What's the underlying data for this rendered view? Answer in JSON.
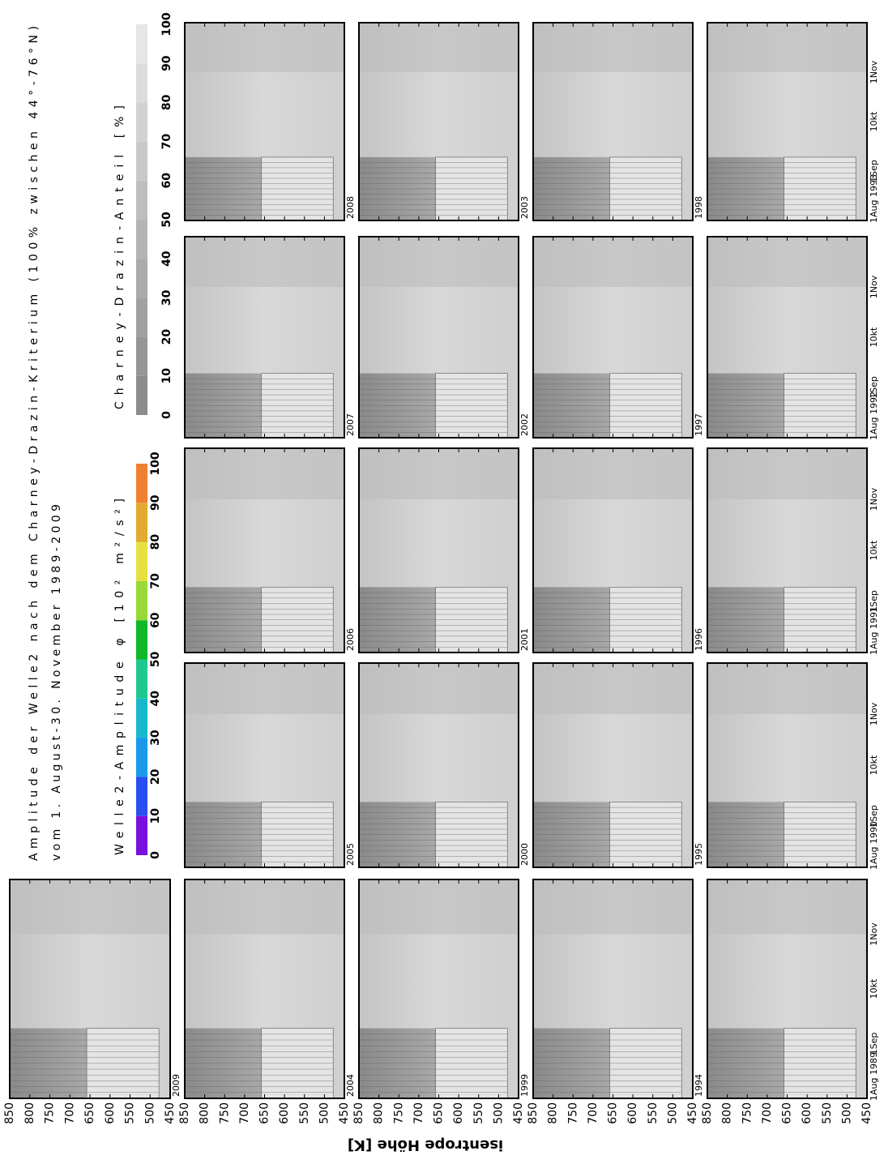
{
  "title": "Amplitude der Welle2 nach dem Charney-Drazin-Kriterium (100% zwischen 44°-76°N)",
  "subtitle": "vom 1. August-30. November 1989-2009",
  "y_axis_label": "isentrope Höhe [K]",
  "height_ticks": [
    850,
    800,
    750,
    700,
    650,
    600,
    550,
    500,
    450
  ],
  "colorbars": [
    {
      "label": "Welle2-Amplitude φ [10² m²/s²]",
      "ticks": [
        0,
        10,
        20,
        30,
        40,
        50,
        60,
        70,
        80,
        90,
        100
      ],
      "colors": [
        "#7a10e0",
        "#2850f0",
        "#1a98ea",
        "#18b8cc",
        "#20c890",
        "#10b828",
        "#98d838",
        "#e6e040",
        "#e2aa30",
        "#f08030"
      ]
    },
    {
      "label": "Charney-Drazin-Anteil [%]",
      "ticks": [
        0,
        10,
        20,
        30,
        40,
        50,
        60,
        70,
        80,
        90,
        100
      ],
      "colors": [
        "#8c8c8c",
        "#969696",
        "#a0a0a0",
        "#aaaaaa",
        "#b4b4b4",
        "#bebebe",
        "#c8c8c8",
        "#d2d2d2",
        "#dcdcdc",
        "#e6e6e6"
      ]
    }
  ],
  "panels": [
    {
      "label": "2009"
    },
    {
      "label": "2008"
    },
    {
      "label": "2007"
    },
    {
      "label": "2006"
    },
    {
      "label": "2005"
    },
    {
      "label": "2004"
    },
    {
      "label": "2003"
    },
    {
      "label": "2002"
    },
    {
      "label": "2001"
    },
    {
      "label": "2000"
    },
    {
      "label": "1999"
    },
    {
      "label": "1998"
    },
    {
      "label": "1997"
    },
    {
      "label": "1996"
    },
    {
      "label": "1995"
    },
    {
      "label": "1994"
    },
    {
      "date_labels": [
        "1Aug 1993",
        "1Sep",
        "10kt",
        "1Nov"
      ]
    },
    {
      "date_labels": [
        "1Aug 1992",
        "1Sep",
        "10kt",
        "1Nov"
      ]
    },
    {
      "date_labels": [
        "1Aug 1991",
        "1Sep",
        "10kt",
        "1Nov"
      ]
    },
    {
      "date_labels": [
        "1Aug 1990",
        "1Sep",
        "10kt",
        "1Nov"
      ]
    },
    {
      "date_labels": [
        "1Aug 1989",
        "1Sep",
        "10kt",
        "1Nov"
      ]
    }
  ]
}
